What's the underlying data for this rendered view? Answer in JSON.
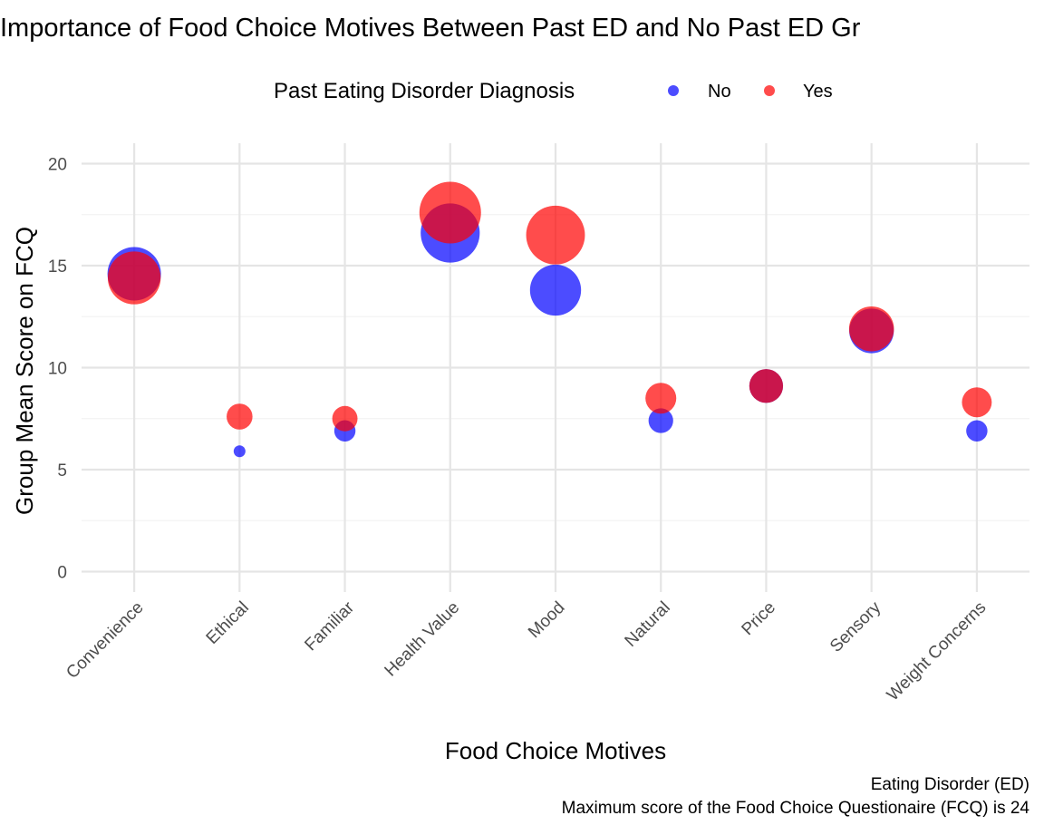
{
  "chart_data": {
    "type": "scatter",
    "title": "Importance of Food Choice Motives Between Past ED and No Past ED Gr",
    "xlabel": "Food Choice Motives",
    "ylabel": "Group Mean Score on FCQ",
    "categories": [
      "Convenience",
      "Ethical",
      "Familiar",
      "Health Value",
      "Mood",
      "Natural",
      "Price",
      "Sensory",
      "Weight Concerns"
    ],
    "ylim": [
      -1,
      21
    ],
    "y_ticks": [
      "0",
      "5",
      "10",
      "15",
      "20"
    ],
    "grid": true,
    "legend": {
      "title": "Past Eating Disorder Diagnosis",
      "position": "top",
      "entries": [
        "No",
        "Yes"
      ]
    },
    "series": [
      {
        "name": "No",
        "color": "#0000ff",
        "values": [
          14.6,
          5.9,
          6.9,
          16.6,
          13.8,
          7.4,
          9.1,
          11.8,
          6.9
        ]
      },
      {
        "name": "Yes",
        "color": "#ff0000",
        "values": [
          14.4,
          7.6,
          7.5,
          17.6,
          16.5,
          8.5,
          9.1,
          11.9,
          8.3
        ]
      }
    ],
    "size_note": "point area scales with group mean score",
    "caption": [
      "Eating Disorder (ED)",
      "Maximum score of the Food Choice Questionaire (FCQ) is 24"
    ]
  }
}
